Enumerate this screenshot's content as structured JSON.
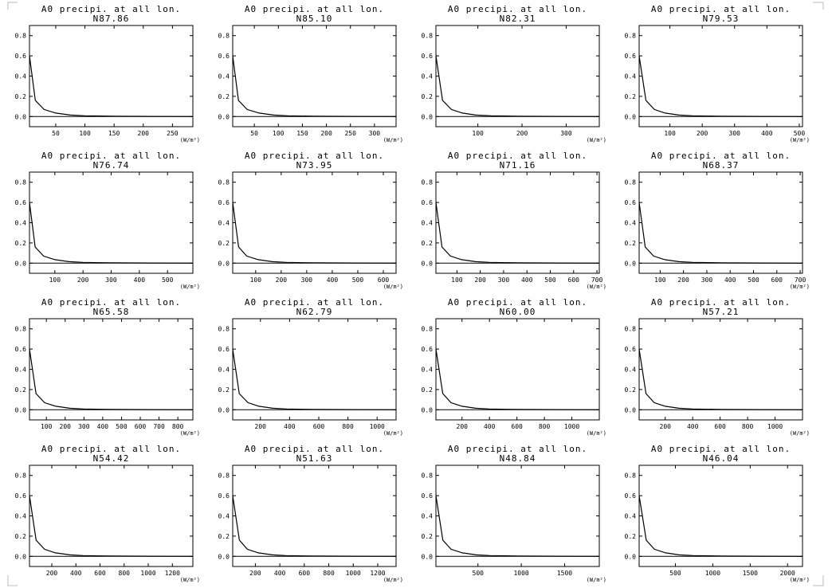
{
  "colors": {
    "background": "#ffffff",
    "line": "#000000"
  },
  "chart_data": [
    {
      "type": "line",
      "title": "A0 precipi. at all lon.",
      "subtitle": "N87.86",
      "unit": "(W/m²)",
      "ylim": [
        -0.1,
        0.9
      ],
      "yticks": [
        0.0,
        0.2,
        0.4,
        0.6,
        0.8
      ],
      "xlim": [
        5,
        285
      ],
      "xticks": [
        50,
        100,
        150,
        200,
        250
      ],
      "x": [
        5,
        15,
        30,
        50,
        75,
        100,
        150,
        285
      ],
      "y": [
        0.6,
        0.16,
        0.07,
        0.035,
        0.015,
        0.008,
        0.003,
        0.0
      ]
    },
    {
      "type": "line",
      "title": "A0 precipi. at all lon.",
      "subtitle": "N76.74",
      "unit": "(W/m²)",
      "ylim": [
        -0.1,
        0.9
      ],
      "yticks": [
        0.0,
        0.2,
        0.4,
        0.6,
        0.8
      ],
      "xlim": [
        10,
        590
      ],
      "xticks": [
        100,
        200,
        300,
        400,
        500
      ],
      "x": [
        10,
        30,
        60,
        100,
        150,
        200,
        300,
        590
      ],
      "y": [
        0.6,
        0.16,
        0.07,
        0.035,
        0.015,
        0.008,
        0.003,
        0.0
      ]
    },
    {
      "type": "line",
      "title": "A0 precipi. at all lon.",
      "subtitle": "N65.58",
      "unit": "(W/m²)",
      "ylim": [
        -0.1,
        0.9
      ],
      "yticks": [
        0.0,
        0.2,
        0.4,
        0.6,
        0.8
      ],
      "xlim": [
        10,
        880
      ],
      "xticks": [
        100,
        200,
        300,
        400,
        500,
        600,
        700,
        800
      ],
      "x": [
        10,
        45,
        90,
        150,
        225,
        300,
        450,
        880
      ],
      "y": [
        0.6,
        0.16,
        0.07,
        0.035,
        0.015,
        0.008,
        0.003,
        0.0
      ]
    },
    {
      "type": "line",
      "title": "A0 precipi. at all lon.",
      "subtitle": "N54.42",
      "unit": "(W/m²)",
      "ylim": [
        -0.1,
        0.9
      ],
      "yticks": [
        0.0,
        0.2,
        0.4,
        0.6,
        0.8
      ],
      "xlim": [
        15,
        1370
      ],
      "xticks": [
        200,
        400,
        600,
        800,
        1000,
        1200
      ],
      "x": [
        15,
        70,
        140,
        230,
        350,
        460,
        700,
        1370
      ],
      "y": [
        0.6,
        0.16,
        0.07,
        0.035,
        0.015,
        0.008,
        0.003,
        0.0
      ]
    },
    {
      "type": "line",
      "title": "A0 precipi. at all lon.",
      "subtitle": "N85.10",
      "unit": "(W/m²)",
      "ylim": [
        -0.1,
        0.9
      ],
      "yticks": [
        0.0,
        0.2,
        0.4,
        0.6,
        0.8
      ],
      "xlim": [
        5,
        345
      ],
      "xticks": [
        50,
        100,
        150,
        200,
        250,
        300
      ],
      "x": [
        5,
        17,
        35,
        60,
        90,
        120,
        175,
        345
      ],
      "y": [
        0.6,
        0.16,
        0.07,
        0.035,
        0.015,
        0.008,
        0.003,
        0.0
      ]
    },
    {
      "type": "line",
      "title": "A0 precipi. at all lon.",
      "subtitle": "N73.95",
      "unit": "(W/m²)",
      "ylim": [
        -0.1,
        0.9
      ],
      "yticks": [
        0.0,
        0.2,
        0.4,
        0.6,
        0.8
      ],
      "xlim": [
        10,
        650
      ],
      "xticks": [
        100,
        200,
        300,
        400,
        500,
        600
      ],
      "x": [
        10,
        33,
        65,
        110,
        165,
        220,
        330,
        650
      ],
      "y": [
        0.6,
        0.16,
        0.07,
        0.035,
        0.015,
        0.008,
        0.003,
        0.0
      ]
    },
    {
      "type": "line",
      "title": "A0 precipi. at all lon.",
      "subtitle": "N62.79",
      "unit": "(W/m²)",
      "ylim": [
        -0.1,
        0.9
      ],
      "yticks": [
        0.0,
        0.2,
        0.4,
        0.6,
        0.8
      ],
      "xlim": [
        10,
        1130
      ],
      "xticks": [
        200,
        400,
        600,
        800,
        1000
      ],
      "x": [
        10,
        55,
        115,
        190,
        285,
        380,
        570,
        1130
      ],
      "y": [
        0.6,
        0.16,
        0.07,
        0.035,
        0.015,
        0.008,
        0.003,
        0.0
      ]
    },
    {
      "type": "line",
      "title": "A0 precipi. at all lon.",
      "subtitle": "N51.63",
      "unit": "(W/m²)",
      "ylim": [
        -0.1,
        0.9
      ],
      "yticks": [
        0.0,
        0.2,
        0.4,
        0.6,
        0.8
      ],
      "xlim": [
        15,
        1350
      ],
      "xticks": [
        200,
        400,
        600,
        800,
        1000,
        1200
      ],
      "x": [
        15,
        70,
        135,
        225,
        340,
        450,
        680,
        1350
      ],
      "y": [
        0.6,
        0.16,
        0.07,
        0.035,
        0.015,
        0.008,
        0.003,
        0.0
      ]
    },
    {
      "type": "line",
      "title": "A0 precipi. at all lon.",
      "subtitle": "N82.31",
      "unit": "(W/m²)",
      "ylim": [
        -0.1,
        0.9
      ],
      "yticks": [
        0.0,
        0.2,
        0.4,
        0.6,
        0.8
      ],
      "xlim": [
        5,
        375
      ],
      "xticks": [
        100,
        200,
        300
      ],
      "x": [
        5,
        20,
        40,
        65,
        95,
        130,
        190,
        375
      ],
      "y": [
        0.6,
        0.16,
        0.07,
        0.035,
        0.015,
        0.008,
        0.003,
        0.0
      ]
    },
    {
      "type": "line",
      "title": "A0 precipi. at all lon.",
      "subtitle": "N71.16",
      "unit": "(W/m²)",
      "ylim": [
        -0.1,
        0.9
      ],
      "yticks": [
        0.0,
        0.2,
        0.4,
        0.6,
        0.8
      ],
      "xlim": [
        10,
        710
      ],
      "xticks": [
        100,
        200,
        300,
        400,
        500,
        600,
        700
      ],
      "x": [
        10,
        36,
        72,
        120,
        180,
        240,
        360,
        710
      ],
      "y": [
        0.6,
        0.16,
        0.07,
        0.035,
        0.015,
        0.008,
        0.003,
        0.0
      ]
    },
    {
      "type": "line",
      "title": "A0 precipi. at all lon.",
      "subtitle": "N60.00",
      "unit": "(W/m²)",
      "ylim": [
        -0.1,
        0.9
      ],
      "yticks": [
        0.0,
        0.2,
        0.4,
        0.6,
        0.8
      ],
      "xlim": [
        10,
        1200
      ],
      "xticks": [
        200,
        400,
        600,
        800,
        1000
      ],
      "x": [
        10,
        60,
        120,
        200,
        300,
        400,
        600,
        1200
      ],
      "y": [
        0.6,
        0.16,
        0.07,
        0.035,
        0.015,
        0.008,
        0.003,
        0.0
      ]
    },
    {
      "type": "line",
      "title": "A0 precipi. at all lon.",
      "subtitle": "N48.84",
      "unit": "(W/m²)",
      "ylim": [
        -0.1,
        0.9
      ],
      "yticks": [
        0.0,
        0.2,
        0.4,
        0.6,
        0.8
      ],
      "xlim": [
        15,
        1900
      ],
      "xticks": [
        500,
        1000,
        1500
      ],
      "x": [
        15,
        95,
        190,
        320,
        480,
        640,
        960,
        1900
      ],
      "y": [
        0.6,
        0.16,
        0.07,
        0.035,
        0.015,
        0.008,
        0.003,
        0.0
      ]
    },
    {
      "type": "line",
      "title": "A0 precipi. at all lon.",
      "subtitle": "N79.53",
      "unit": "(W/m²)",
      "ylim": [
        -0.1,
        0.9
      ],
      "yticks": [
        0.0,
        0.2,
        0.4,
        0.6,
        0.8
      ],
      "xlim": [
        5,
        510
      ],
      "xticks": [
        100,
        200,
        300,
        400,
        500
      ],
      "x": [
        5,
        26,
        52,
        85,
        128,
        170,
        255,
        510
      ],
      "y": [
        0.6,
        0.16,
        0.07,
        0.035,
        0.015,
        0.008,
        0.003,
        0.0
      ]
    },
    {
      "type": "line",
      "title": "A0 precipi. at all lon.",
      "subtitle": "N68.37",
      "unit": "(W/m²)",
      "ylim": [
        -0.1,
        0.9
      ],
      "yticks": [
        0.0,
        0.2,
        0.4,
        0.6,
        0.8
      ],
      "xlim": [
        10,
        710
      ],
      "xticks": [
        100,
        200,
        300,
        400,
        500,
        600,
        700
      ],
      "x": [
        10,
        36,
        72,
        120,
        180,
        240,
        360,
        710
      ],
      "y": [
        0.6,
        0.16,
        0.07,
        0.035,
        0.015,
        0.008,
        0.003,
        0.0
      ]
    },
    {
      "type": "line",
      "title": "A0 precipi. at all lon.",
      "subtitle": "N57.21",
      "unit": "(W/m²)",
      "ylim": [
        -0.1,
        0.9
      ],
      "yticks": [
        0.0,
        0.2,
        0.4,
        0.6,
        0.8
      ],
      "xlim": [
        10,
        1200
      ],
      "xticks": [
        200,
        400,
        600,
        800,
        1000
      ],
      "x": [
        10,
        60,
        120,
        200,
        300,
        400,
        600,
        1200
      ],
      "y": [
        0.6,
        0.16,
        0.07,
        0.035,
        0.015,
        0.008,
        0.003,
        0.0
      ]
    },
    {
      "type": "line",
      "title": "A0 precipi. at all lon.",
      "subtitle": "N46.04",
      "unit": "(W/m²)",
      "ylim": [
        -0.1,
        0.9
      ],
      "yticks": [
        0.0,
        0.2,
        0.4,
        0.6,
        0.8
      ],
      "xlim": [
        15,
        2200
      ],
      "xticks": [
        500,
        1000,
        1500,
        2000
      ],
      "x": [
        15,
        110,
        220,
        370,
        550,
        740,
        1100,
        2200
      ],
      "y": [
        0.6,
        0.16,
        0.07,
        0.035,
        0.015,
        0.008,
        0.003,
        0.0
      ]
    }
  ]
}
